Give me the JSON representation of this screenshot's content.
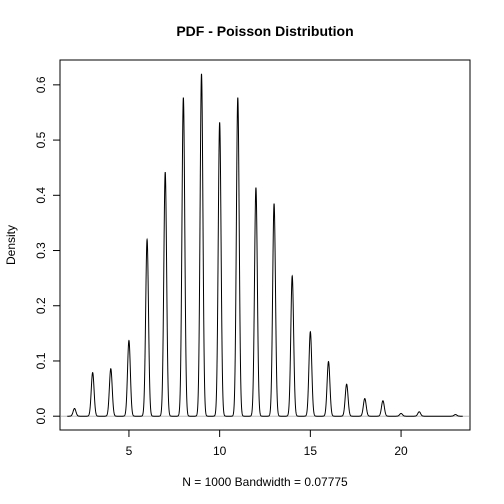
{
  "chart_data": {
    "type": "line",
    "title": "PDF - Poisson Distribution",
    "xlabel": "N = 1000   Bandwidth = 0.07775",
    "ylabel": "Density",
    "xlim": [
      1.2,
      23.8
    ],
    "ylim": [
      -0.025,
      0.645
    ],
    "x_ticks": [
      5,
      10,
      15,
      20
    ],
    "y_ticks": [
      0.0,
      0.1,
      0.2,
      0.3,
      0.4,
      0.5,
      0.6
    ],
    "y_tick_labels": [
      "0.0",
      "0.1",
      "0.2",
      "0.3",
      "0.4",
      "0.5",
      "0.6"
    ],
    "bandwidth": 0.07775,
    "n": 1000,
    "peaks": [
      {
        "x": 2,
        "density": 0.014
      },
      {
        "x": 3,
        "density": 0.079
      },
      {
        "x": 4,
        "density": 0.086
      },
      {
        "x": 5,
        "density": 0.137
      },
      {
        "x": 6,
        "density": 0.32
      },
      {
        "x": 7,
        "density": 0.442
      },
      {
        "x": 8,
        "density": 0.577
      },
      {
        "x": 9,
        "density": 0.62
      },
      {
        "x": 10,
        "density": 0.532
      },
      {
        "x": 11,
        "density": 0.577
      },
      {
        "x": 12,
        "density": 0.414
      },
      {
        "x": 13,
        "density": 0.385
      },
      {
        "x": 14,
        "density": 0.254
      },
      {
        "x": 15,
        "density": 0.153
      },
      {
        "x": 16,
        "density": 0.099
      },
      {
        "x": 17,
        "density": 0.058
      },
      {
        "x": 18,
        "density": 0.032
      },
      {
        "x": 19,
        "density": 0.028
      },
      {
        "x": 20,
        "density": 0.005
      },
      {
        "x": 21,
        "density": 0.008
      },
      {
        "x": 23,
        "density": 0.003
      }
    ]
  }
}
